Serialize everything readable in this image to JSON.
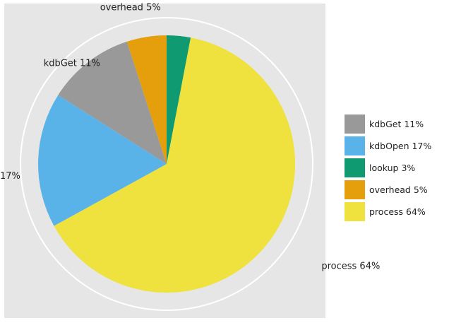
{
  "chart_data": {
    "type": "pie",
    "title": "",
    "start_label": "lookup 3%",
    "slices": [
      {
        "name": "lookup",
        "label": "lookup 3%",
        "value": 3,
        "color": "#0f9a72"
      },
      {
        "name": "process",
        "label": "process 64%",
        "value": 64,
        "color": "#efe23f"
      },
      {
        "name": "kdbOpen",
        "label": "kdbOpen 17%",
        "value": 17,
        "color": "#5ab3e8"
      },
      {
        "name": "kdbGet",
        "label": "kdbGet 11%",
        "value": 11,
        "color": "#999999"
      },
      {
        "name": "overhead",
        "label": "overhead 5%",
        "value": 5,
        "color": "#e59f0c"
      }
    ],
    "legend_position": "right",
    "legend": [
      {
        "label": "kdbGet 11%",
        "color": "#999999"
      },
      {
        "label": "kdbOpen 17%",
        "color": "#5ab3e8"
      },
      {
        "label": "lookup 3%",
        "color": "#0f9a72"
      },
      {
        "label": "overhead 5%",
        "color": "#e59f0c"
      },
      {
        "label": "process 64%",
        "color": "#efe23f"
      }
    ],
    "panel_background": "#e6e6e6",
    "grid": true
  }
}
